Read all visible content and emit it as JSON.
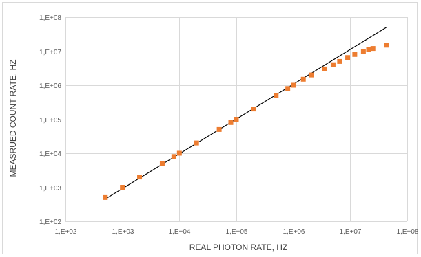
{
  "chart_data": {
    "type": "scatter",
    "xlabel": "REAL PHOTON RATE, HZ",
    "ylabel": "MEASRUED COUNT RATE, HZ",
    "x_scale": "log",
    "y_scale": "log",
    "xlim": [
      100,
      100000000
    ],
    "ylim": [
      100,
      100000000
    ],
    "x_ticks": [
      {
        "value": 100,
        "label": "1,E+02"
      },
      {
        "value": 1000,
        "label": "1,E+03"
      },
      {
        "value": 10000,
        "label": "1,E+04"
      },
      {
        "value": 100000,
        "label": "1,E+05"
      },
      {
        "value": 1000000,
        "label": "1,E+06"
      },
      {
        "value": 10000000,
        "label": "1,E+07"
      },
      {
        "value": 100000000,
        "label": "1,E+08"
      }
    ],
    "y_ticks": [
      {
        "value": 100,
        "label": "1,E+02"
      },
      {
        "value": 1000,
        "label": "1,E+03"
      },
      {
        "value": 10000,
        "label": "1,E+04"
      },
      {
        "value": 100000,
        "label": "1,E+05"
      },
      {
        "value": 1000000,
        "label": "1,E+06"
      },
      {
        "value": 10000000,
        "label": "1,E+07"
      },
      {
        "value": 100000000,
        "label": "1,E+08"
      }
    ],
    "grid": true,
    "series": [
      {
        "type": "scatter",
        "color": "#ed7d31",
        "marker": "square",
        "points": [
          {
            "x": 500,
            "y": 500
          },
          {
            "x": 1000,
            "y": 1000
          },
          {
            "x": 2000,
            "y": 2000
          },
          {
            "x": 5000,
            "y": 5000
          },
          {
            "x": 8000,
            "y": 8000
          },
          {
            "x": 10000,
            "y": 10000
          },
          {
            "x": 20000,
            "y": 20000
          },
          {
            "x": 50000,
            "y": 50000
          },
          {
            "x": 80000,
            "y": 80000
          },
          {
            "x": 100000,
            "y": 100000
          },
          {
            "x": 200000,
            "y": 200000
          },
          {
            "x": 500000,
            "y": 500000
          },
          {
            "x": 800000,
            "y": 800000
          },
          {
            "x": 1000000,
            "y": 1000000
          },
          {
            "x": 1500000,
            "y": 1500000
          },
          {
            "x": 2100000,
            "y": 2000000
          },
          {
            "x": 3500000,
            "y": 3000000
          },
          {
            "x": 5000000,
            "y": 4000000
          },
          {
            "x": 6500000,
            "y": 5000000
          },
          {
            "x": 9000000,
            "y": 6500000
          },
          {
            "x": 12000000,
            "y": 8000000
          },
          {
            "x": 17000000,
            "y": 10000000
          },
          {
            "x": 21000000,
            "y": 11000000
          },
          {
            "x": 25000000,
            "y": 12000000
          },
          {
            "x": 43000000,
            "y": 15000000
          }
        ]
      },
      {
        "type": "line",
        "color": "#000000",
        "points": [
          {
            "x": 500,
            "y": 450
          },
          {
            "x": 43000000,
            "y": 50000000
          }
        ]
      }
    ]
  }
}
